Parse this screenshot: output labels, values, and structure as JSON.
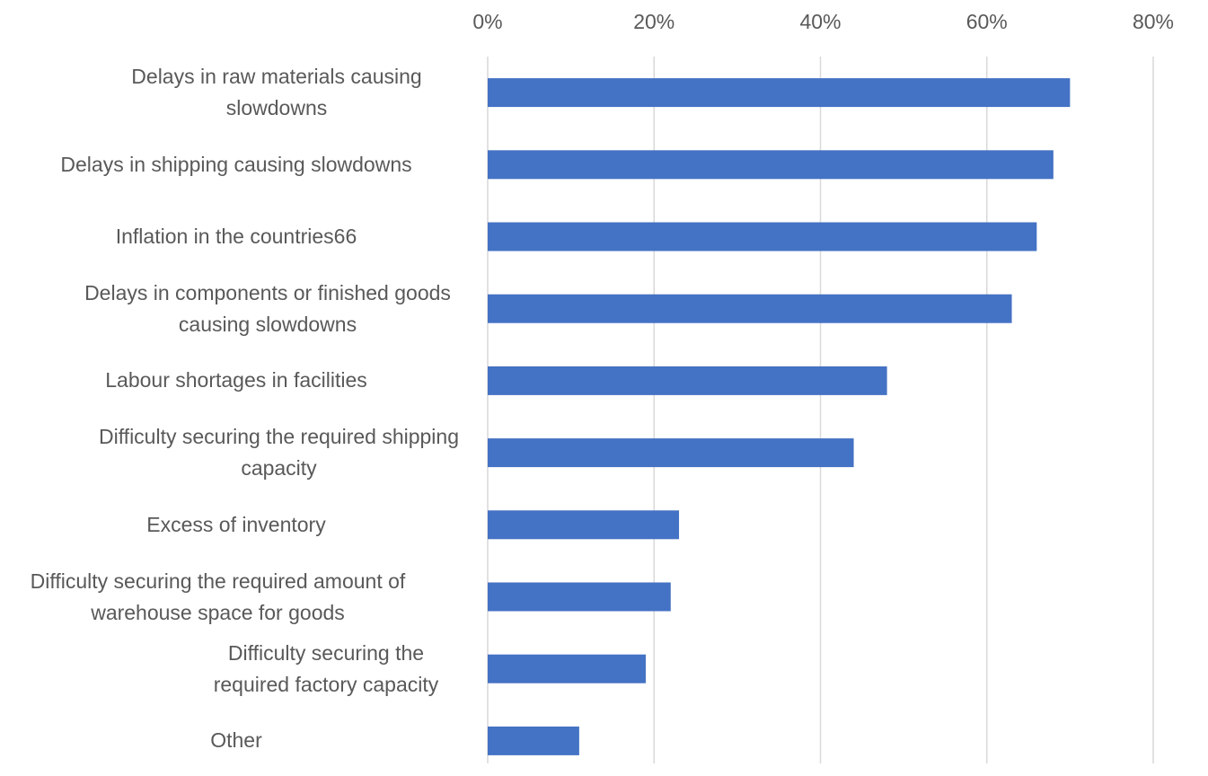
{
  "chart_data": {
    "type": "barh",
    "categories": [
      "Delays in raw materials causing slowdowns",
      "Delays in shipping causing slowdowns",
      "Inflation in the countries66",
      "Delays in components or finished goods causing slowdowns",
      "Labour shortages in facilities",
      "Difficulty securing the required shipping capacity",
      "Excess of inventory",
      "Difficulty securing the required amount of warehouse space for goods",
      "Difficulty securing the required factory capacity",
      "Other"
    ],
    "values": [
      70,
      68,
      66,
      63,
      48,
      44,
      23,
      22,
      19,
      11
    ],
    "color": "#4472c4",
    "xlim": [
      0,
      80
    ],
    "xticks": [
      {
        "value": 0,
        "label": "0%"
      },
      {
        "value": 20,
        "label": "20%"
      },
      {
        "value": 40,
        "label": "40%"
      },
      {
        "value": 60,
        "label": "60%"
      },
      {
        "value": 80,
        "label": "80%"
      }
    ],
    "grid": true
  }
}
